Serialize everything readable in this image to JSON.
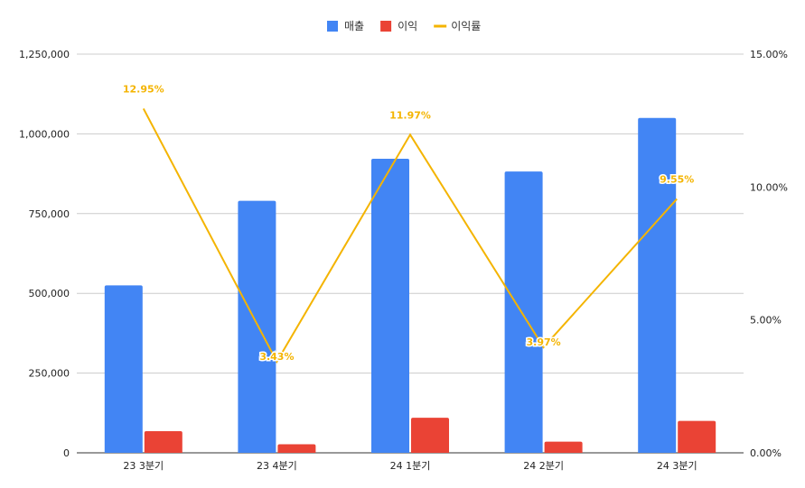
{
  "chart_data": {
    "type": "bar",
    "categories": [
      "23 3분기",
      "23 4분기",
      "24 1분기",
      "24 2분기",
      "24 3분기"
    ],
    "series": [
      {
        "name": "매출",
        "kind": "bar",
        "axis": "left",
        "color": "#4285f4",
        "values": [
          525000,
          790000,
          922000,
          882000,
          1050000
        ]
      },
      {
        "name": "이익",
        "kind": "bar",
        "axis": "left",
        "color": "#ea4335",
        "values": [
          68000,
          27000,
          110000,
          35000,
          100000
        ]
      },
      {
        "name": "이익률",
        "kind": "line",
        "axis": "right",
        "color": "#f4b400",
        "values": [
          12.95,
          3.43,
          11.97,
          3.97,
          9.55
        ],
        "labels": [
          "12.95%",
          "3.43%",
          "11.97%",
          "3.97%",
          "9.55%"
        ]
      }
    ],
    "left_axis": {
      "ylim": [
        0,
        1250000
      ],
      "ticks": [
        0,
        250000,
        500000,
        750000,
        1000000,
        1250000
      ],
      "tick_labels": [
        "0",
        "250,000",
        "500,000",
        "750,000",
        "1,000,000",
        "1,250,000"
      ]
    },
    "right_axis": {
      "ylim": [
        0,
        15
      ],
      "ticks": [
        0,
        5,
        10,
        15
      ],
      "tick_labels": [
        "0.00%",
        "5.00%",
        "10.00%",
        "15.00%"
      ]
    },
    "grid": true,
    "legend_position": "top-center"
  }
}
